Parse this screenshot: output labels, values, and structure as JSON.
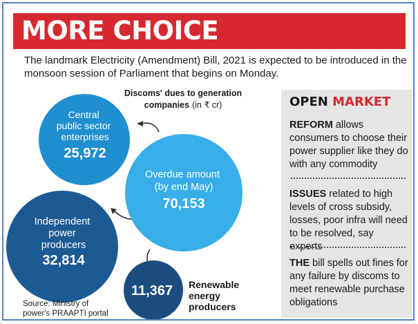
{
  "title": "MORE CHOICE",
  "intro": "The landmark Electricity (Amendment) Bill, 2021 is expected to be introduced in the monsoon session of Parliament that begins on Monday.",
  "chart_data": {
    "type": "bubble",
    "title_line1": "Discoms' dues to generation",
    "title_line2": "companies",
    "unit": "(in ₹ cr)",
    "total": {
      "label_lines": [
        "Overdue amount",
        "(by end May)"
      ],
      "value": 70153,
      "value_label": "70,153"
    },
    "items": [
      {
        "label_lines": [
          "Central",
          "public sector",
          "enterprises"
        ],
        "value": 25972,
        "value_label": "25,972"
      },
      {
        "label_lines": [
          "Independent",
          "power",
          "producers"
        ],
        "value": 32814,
        "value_label": "32,814"
      },
      {
        "label_lines": [
          "Renewable",
          "energy",
          "producers"
        ],
        "value": 11367,
        "value_label": "11,367"
      }
    ],
    "colors": {
      "total": "#37aee8",
      "central": "#1f8fd0",
      "ipp": "#1c5a94",
      "renewable": "#1d4d7e"
    },
    "source": [
      "Source: Ministry of",
      "power's PRAAPTI portal"
    ]
  },
  "open_market": {
    "title_a": "OPEN",
    "title_b": "MARKET",
    "sections": [
      {
        "keyword": "REFORM",
        "text": " allows consumers to choose their power supplier like they do with any commodity"
      },
      {
        "keyword": "ISSUES",
        "text": " related to high levels of cross subsidy, losses, poor infra will need to be resolved, say experts"
      },
      {
        "keyword": "THE",
        "text": " bill spells out fines for any failure by discoms to meet renewable purchase obligations"
      }
    ]
  }
}
